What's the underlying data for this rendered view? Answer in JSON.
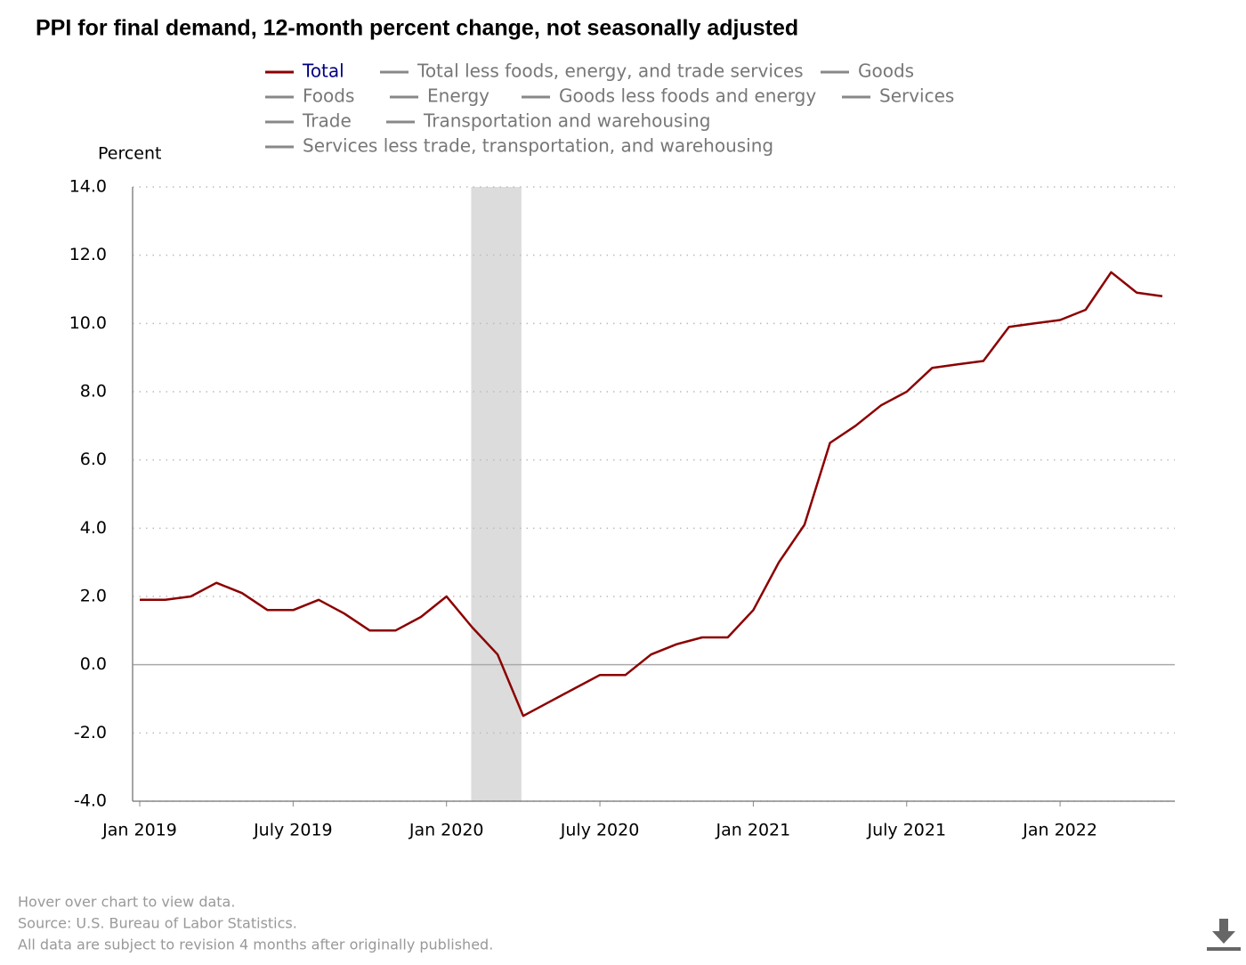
{
  "chart_data": {
    "type": "line",
    "title": "PPI for final demand, 12-month percent change, not seasonally adjusted",
    "y_label": "Percent",
    "x": [
      "2019-01",
      "2019-02",
      "2019-03",
      "2019-04",
      "2019-05",
      "2019-06",
      "2019-07",
      "2019-08",
      "2019-09",
      "2019-10",
      "2019-11",
      "2019-12",
      "2020-01",
      "2020-02",
      "2020-03",
      "2020-04",
      "2020-05",
      "2020-06",
      "2020-07",
      "2020-08",
      "2020-09",
      "2020-10",
      "2020-11",
      "2020-12",
      "2021-01",
      "2021-02",
      "2021-03",
      "2021-04",
      "2021-05",
      "2021-06",
      "2021-07",
      "2021-08",
      "2021-09",
      "2021-10",
      "2021-11",
      "2021-12",
      "2022-01",
      "2022-02",
      "2022-03",
      "2022-04",
      "2022-05"
    ],
    "series": [
      {
        "name": "Total",
        "color": "#8b0000",
        "values": [
          1.9,
          1.9,
          2.0,
          2.4,
          2.1,
          1.6,
          1.6,
          1.9,
          1.5,
          1.0,
          1.0,
          1.4,
          2.0,
          1.1,
          0.3,
          -1.5,
          -1.1,
          -0.7,
          -0.3,
          -0.3,
          0.3,
          0.6,
          0.8,
          0.8,
          1.6,
          3.0,
          4.1,
          6.5,
          7.0,
          7.6,
          8.0,
          8.7,
          8.8,
          8.9,
          9.9,
          10.0,
          10.1,
          10.4,
          11.5,
          10.9,
          10.8
        ]
      }
    ],
    "other_legend_items": [
      "Total less foods, energy, and trade services",
      "Goods",
      "Foods",
      "Energy",
      "Goods less foods and energy",
      "Services",
      "Trade",
      "Transportation and warehousing",
      "Services less trade, transportation, and warehousing"
    ],
    "other_legend_color": "#888888",
    "xlim": [
      "2019-01",
      "2022-05"
    ],
    "xticks": [
      {
        "value": "2019-01",
        "label": "Jan 2019"
      },
      {
        "value": "2019-07",
        "label": "July 2019"
      },
      {
        "value": "2020-01",
        "label": "Jan 2020"
      },
      {
        "value": "2020-07",
        "label": "July 2020"
      },
      {
        "value": "2021-01",
        "label": "Jan 2021"
      },
      {
        "value": "2021-07",
        "label": "July 2021"
      },
      {
        "value": "2022-01",
        "label": "Jan 2022"
      }
    ],
    "ylim": [
      -4,
      14
    ],
    "yticks": [
      {
        "value": -4,
        "label": "-4.0"
      },
      {
        "value": -2,
        "label": "-2.0"
      },
      {
        "value": 0,
        "label": "0.0"
      },
      {
        "value": 2,
        "label": "2.0"
      },
      {
        "value": 4,
        "label": "4.0"
      },
      {
        "value": 6,
        "label": "6.0"
      },
      {
        "value": 8,
        "label": "8.0"
      },
      {
        "value": 10,
        "label": "10.0"
      },
      {
        "value": 12,
        "label": "12.0"
      },
      {
        "value": 14,
        "label": "14.0"
      }
    ],
    "grid": true,
    "shaded_period": [
      "2020-02",
      "2020-04"
    ]
  },
  "footer": [
    "Hover over chart to view data.",
    "Source: U.S. Bureau of Labor Statistics.",
    "All data are subject to revision 4 months after originally published."
  ]
}
